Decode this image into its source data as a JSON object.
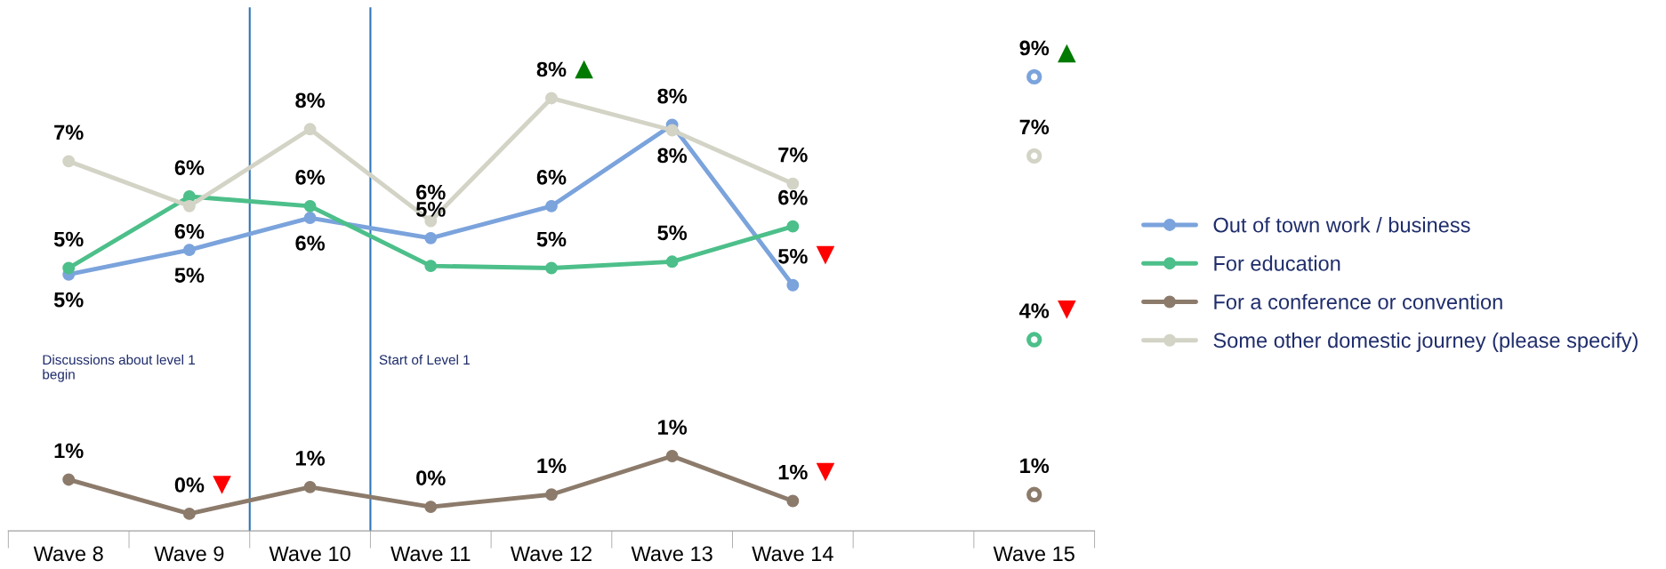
{
  "chart_data": {
    "type": "line",
    "categories": [
      "Wave 8",
      "Wave 9",
      "Wave 10",
      "Wave 11",
      "Wave 12",
      "Wave 13",
      "Wave 14",
      null,
      "Wave 15"
    ],
    "ylim": [
      0,
      9.8
    ],
    "legend": "right",
    "marker": "circle",
    "grid": false,
    "series": [
      {
        "name": "Out of town work / business",
        "color": "#7ba3dc",
        "values": [
          4.8,
          5.26,
          5.86,
          5.48,
          6.08,
          7.6,
          4.6,
          null,
          8.5
        ],
        "value_labels": [
          "5%",
          "5%",
          "6%",
          "5%",
          "6%",
          "8%",
          "5%",
          null,
          "9%"
        ]
      },
      {
        "name": "For education",
        "color": "#4dbf8a",
        "values": [
          4.92,
          6.26,
          6.08,
          4.96,
          4.92,
          5.04,
          5.7,
          null,
          3.58
        ],
        "value_labels": [
          "5%",
          "6%",
          "6%",
          null,
          "5%",
          "5%",
          "6%",
          null,
          "4%"
        ]
      },
      {
        "name": "For a conference or convention",
        "color": "#8c7b6b",
        "values": [
          0.96,
          0.32,
          0.82,
          0.45,
          0.68,
          1.4,
          0.56,
          null,
          0.68
        ],
        "value_labels": [
          "1%",
          "0%",
          "1%",
          "0%",
          "1%",
          "1%",
          "1%",
          null,
          "1%"
        ]
      },
      {
        "name": "Some other domestic journey (please specify)",
        "color": "#d3d3c6",
        "values": [
          6.92,
          6.08,
          7.52,
          5.8,
          8.1,
          7.5,
          6.5,
          null,
          7.02
        ],
        "value_labels": [
          "7%",
          "6%",
          "8%",
          "6%",
          "8%",
          "8%",
          "7%",
          null,
          "7%"
        ]
      },
      {
        "type": "scatter",
        "marker": "triangle",
        "color": "#007a00",
        "values": [
          null,
          null,
          null,
          null,
          8.64,
          null,
          null,
          null,
          8.94
        ]
      },
      {
        "type": "scatter",
        "marker": "triangle_down",
        "color": "#ff0000",
        "values": [
          null,
          0.86,
          null,
          null,
          null,
          null,
          5.16,
          null,
          4.14
        ]
      },
      {
        "type": "scatter",
        "marker": "triangle_down",
        "color": "#ff0000",
        "values": [
          null,
          null,
          null,
          null,
          null,
          null,
          1.1,
          null,
          null
        ]
      }
    ],
    "annotations": [
      "Discussions about level 1\nbegin",
      "Start of Level 1"
    ]
  }
}
